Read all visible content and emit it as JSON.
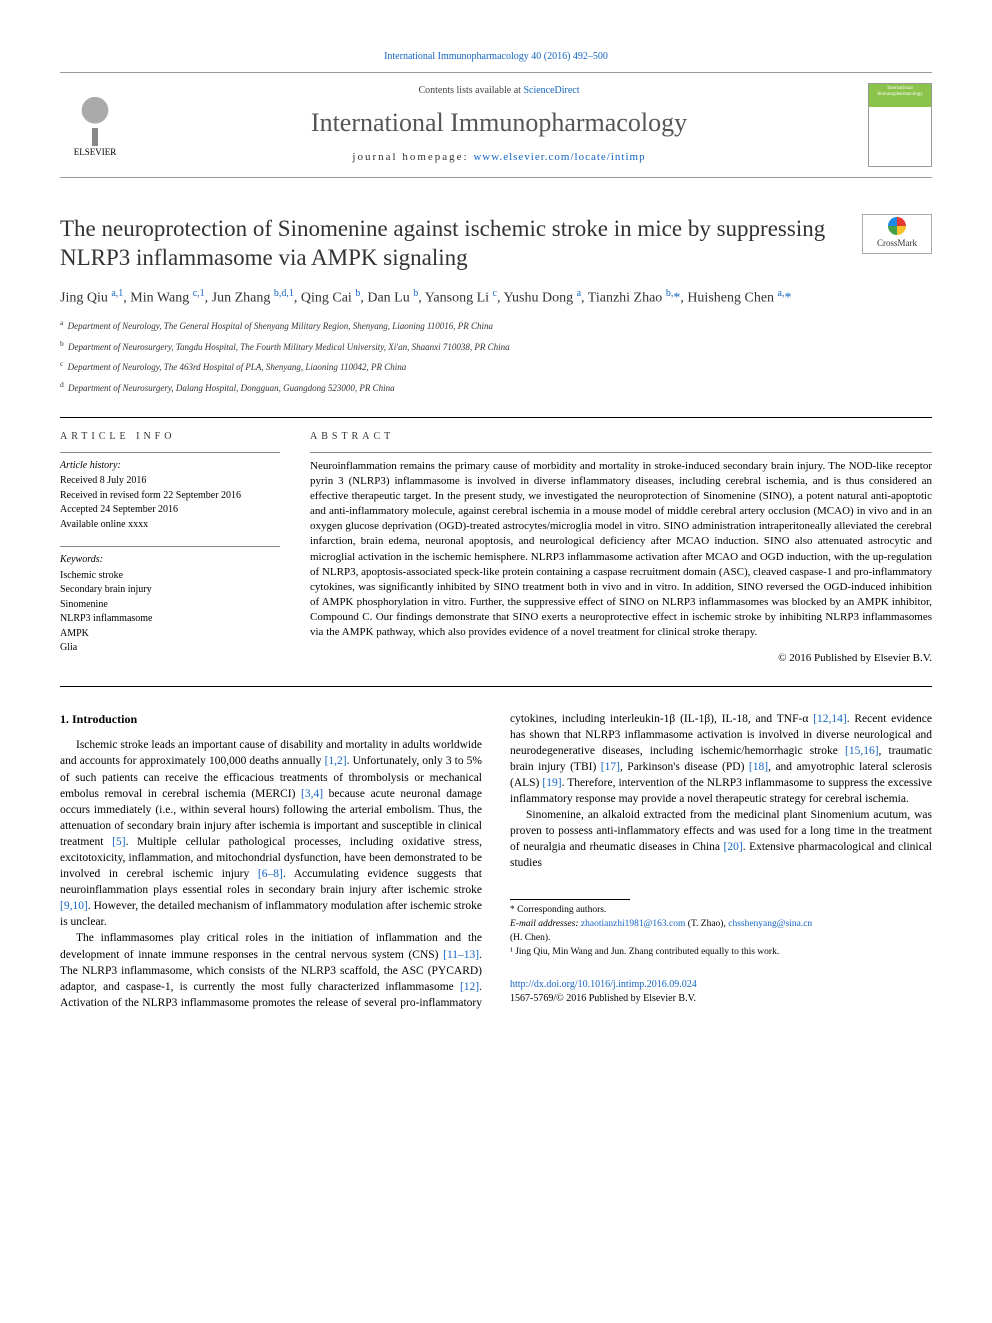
{
  "top_link": {
    "journal": "International Immunopharmacology",
    "ref": " 40 (2016) 492–500"
  },
  "masthead": {
    "contents_prefix": "Contents lists available at ",
    "contents_link": "ScienceDirect",
    "journal_name": "International Immunopharmacology",
    "homepage_prefix": "journal homepage: ",
    "homepage_url": "www.elsevier.com/locate/intimp",
    "elsevier_label": "ELSEVIER",
    "cover_label": "International Immunopharmacology"
  },
  "title": "The neuroprotection of Sinomenine against ischemic stroke in mice by suppressing NLRP3 inflammasome via AMPK signaling",
  "crossmark": "CrossMark",
  "authors_html": "Jing Qiu <sup>a,1</sup>, Min Wang <sup>c,1</sup>, Jun Zhang <sup>b,d,1</sup>, Qing Cai <sup>b</sup>, Dan Lu <sup>b</sup>, Yansong Li <sup>c</sup>, Yushu Dong <sup>a</sup>, Tianzhi Zhao <sup>b,</sup><span class='ast'>*</span>, Huisheng Chen <sup>a,</sup><span class='ast'>*</span>",
  "affiliations": [
    {
      "key": "a",
      "text": "Department of Neurology, The General Hospital of Shenyang Military Region, Shenyang, Liaoning 110016, PR China"
    },
    {
      "key": "b",
      "text": "Department of Neurosurgery, Tangdu Hospital, The Fourth Military Medical University, Xi'an, Shaanxi 710038, PR China"
    },
    {
      "key": "c",
      "text": "Department of Neurology, The 463rd Hospital of PLA, Shenyang, Liaoning 110042, PR China"
    },
    {
      "key": "d",
      "text": "Department of Neurosurgery, Dalang Hospital, Dongguan, Guangdong 523000, PR China"
    }
  ],
  "article_info_label": "article info",
  "abstract_label": "abstract",
  "history": {
    "header": "Article history:",
    "lines": [
      "Received 8 July 2016",
      "Received in revised form 22 September 2016",
      "Accepted 24 September 2016",
      "Available online xxxx"
    ]
  },
  "keywords": {
    "header": "Keywords:",
    "lines": [
      "Ischemic stroke",
      "Secondary brain injury",
      "Sinomenine",
      "NLRP3 inflammasome",
      "AMPK",
      "Glia"
    ]
  },
  "abstract_text": "Neuroinflammation remains the primary cause of morbidity and mortality in stroke-induced secondary brain injury. The NOD-like receptor pyrin 3 (NLRP3) inflammasome is involved in diverse inflammatory diseases, including cerebral ischemia, and is thus considered an effective therapeutic target. In the present study, we investigated the neuroprotection of Sinomenine (SINO), a potent natural anti-apoptotic and anti-inflammatory molecule, against cerebral ischemia in a mouse model of middle cerebral artery occlusion (MCAO) in vivo and in an oxygen glucose deprivation (OGD)-treated astrocytes/microglia model in vitro. SINO administration intraperitoneally alleviated the cerebral infarction, brain edema, neuronal apoptosis, and neurological deficiency after MCAO induction. SINO also attenuated astrocytic and microglial activation in the ischemic hemisphere. NLRP3 inflammasome activation after MCAO and OGD induction, with the up-regulation of NLRP3, apoptosis-associated speck-like protein containing a caspase recruitment domain (ASC), cleaved caspase-1 and pro-inflammatory cytokines, was significantly inhibited by SINO treatment both in vivo and in vitro. In addition, SINO reversed the OGD-induced inhibition of AMPK phosphorylation in vitro. Further, the suppressive effect of SINO on NLRP3 inflammasomes was blocked by an AMPK inhibitor, Compound C. Our findings demonstrate that SINO exerts a neuroprotective effect in ischemic stroke by inhibiting NLRP3 inflammasomes via the AMPK pathway, which also provides evidence of a novel treatment for clinical stroke therapy.",
  "copyright": "© 2016 Published by Elsevier B.V.",
  "intro_heading": "1. Introduction",
  "intro_p1_a": "Ischemic stroke leads an important cause of disability and mortality in adults worldwide and accounts for approximately 100,000 deaths annually ",
  "intro_p1_ref1": "[1,2]",
  "intro_p1_b": ". Unfortunately, only 3 to 5% of such patients can receive the efficacious treatments of thrombolysis or mechanical embolus removal in cerebral ischemia (MERCI) ",
  "intro_p1_ref2": "[3,4]",
  "intro_p1_c": " because acute neuronal damage occurs immediately (i.e., within several hours) following the arterial embolism. Thus, the attenuation of secondary brain injury after ischemia is important and susceptible in clinical treatment ",
  "intro_p1_ref3": "[5]",
  "intro_p1_d": ". Multiple cellular pathological processes, including oxidative stress, excitotoxicity, inflammation, and mitochondrial dysfunction, have been demonstrated to be involved in cerebral ischemic injury ",
  "intro_p1_ref4": "[6–8]",
  "intro_p1_e": ". Accumulating evidence suggests that neuroinflammation plays essential roles in secondary brain injury after ischemic stroke ",
  "intro_p1_ref5": "[9,10]",
  "intro_p1_f": ". However, the detailed mechanism of inflammatory modulation after ischemic stroke is unclear.",
  "intro_p2_a": "The inflammasomes play critical roles in the initiation of inflammation and the development of innate immune responses in the central nervous system (CNS) ",
  "intro_p2_ref1": "[11–13]",
  "intro_p2_b": ". The NLRP3 inflammasome, which consists of the NLRP3 scaffold, the ASC (PYCARD) adaptor, and caspase-1, is currently the most fully characterized inflammasome ",
  "intro_p2_ref2": "[12]",
  "intro_p2_c": ". Activation of the NLRP3 inflammasome promotes the release of several pro-inflammatory cytokines, including interleukin-1β (IL-1β), IL-18, and TNF-α ",
  "intro_p2_ref3": "[12,14]",
  "intro_p2_d": ". Recent evidence has shown that NLRP3 inflammasome activation is involved in diverse neurological and neurodegenerative diseases, including ischemic/hemorrhagic stroke ",
  "intro_p2_ref4": "[15,16]",
  "intro_p2_e": ", traumatic brain injury (TBI) ",
  "intro_p2_ref5": "[17]",
  "intro_p2_f": ", Parkinson's disease (PD) ",
  "intro_p2_ref6": "[18]",
  "intro_p2_g": ", and amyotrophic lateral sclerosis (ALS) ",
  "intro_p2_ref7": "[19]",
  "intro_p2_h": ". Therefore, intervention of the NLRP3 inflammasome to suppress the excessive inflammatory response may provide a novel therapeutic strategy for cerebral ischemia.",
  "intro_p3_a": "Sinomenine, an alkaloid extracted from the medicinal plant Sinomenium acutum, was proven to possess anti-inflammatory effects and was used for a long time in the treatment of neuralgia and rheumatic diseases in China ",
  "intro_p3_ref1": "[20]",
  "intro_p3_b": ". Extensive pharmacological and clinical studies",
  "footer": {
    "corr_label": "* Corresponding authors.",
    "email_label": "E-mail addresses: ",
    "email1": "zhaotianzhi1981@163.com",
    "email1_name": " (T. Zhao), ",
    "email2": "chsshenyang@sina.cn",
    "email2_name": " (H. Chen).",
    "note1": "¹ Jing Qiu, Min Wang and Jun. Zhang contributed equally to this work."
  },
  "doi": {
    "url": "http://dx.doi.org/10.1016/j.intimp.2016.09.024",
    "issn_line": "1567-5769/© 2016 Published by Elsevier B.V."
  },
  "colors": {
    "link": "#1565c0",
    "text": "#000000",
    "heading": "#333333"
  }
}
